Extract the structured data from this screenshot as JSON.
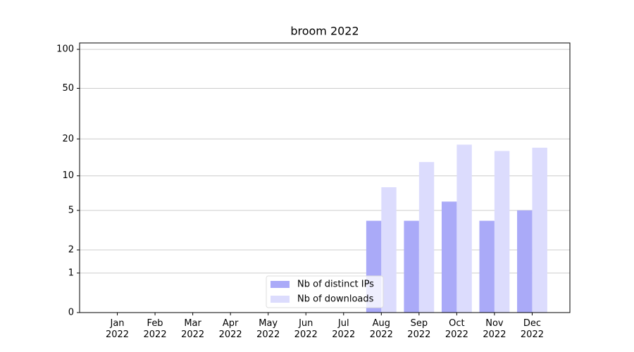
{
  "chart_data": {
    "type": "bar",
    "title": "broom 2022",
    "categories": [
      "Jan\n2022",
      "Feb\n2022",
      "Mar\n2022",
      "Apr\n2022",
      "May\n2022",
      "Jun\n2022",
      "Jul\n2022",
      "Aug\n2022",
      "Sep\n2022",
      "Oct\n2022",
      "Nov\n2022",
      "Dec\n2022"
    ],
    "series": [
      {
        "name": "Nb of distinct IPs",
        "color": "#aaaaf8",
        "values": [
          0,
          0,
          0,
          0,
          0,
          0,
          0,
          4,
          4,
          6,
          4,
          5
        ]
      },
      {
        "name": "Nb of downloads",
        "color": "#dcdcfd",
        "values": [
          0,
          0,
          0,
          0,
          0,
          0,
          0,
          8,
          13,
          18,
          16,
          17
        ]
      }
    ],
    "yscale": "log1p",
    "ylim": [
      0,
      112
    ],
    "yticks": [
      0,
      1,
      2,
      5,
      10,
      20,
      50,
      100
    ],
    "grid": true,
    "legend": "lower center"
  }
}
